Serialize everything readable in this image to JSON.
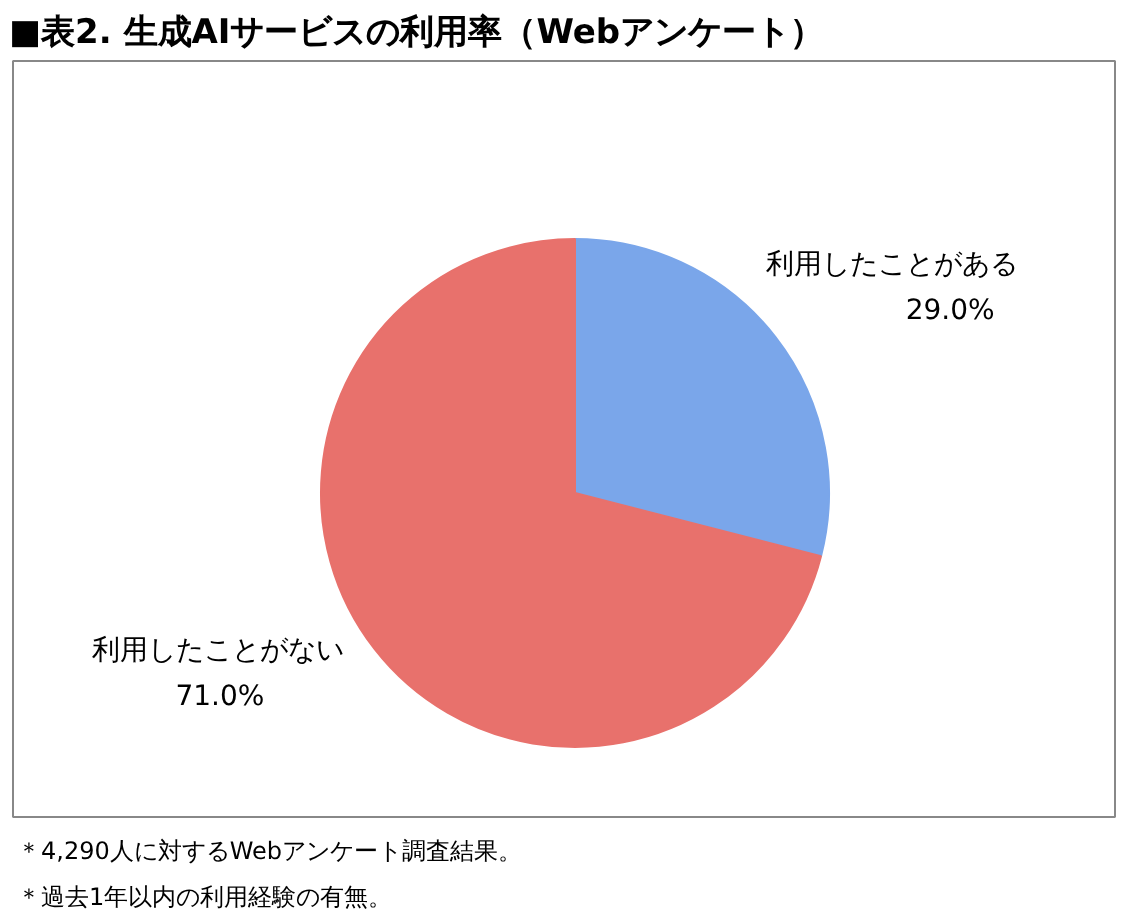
{
  "chart_data": {
    "type": "pie",
    "title": "■表2. 生成AIサービスの利用率（Webアンケート）",
    "categories": [
      "利用したことがある",
      "利用したことがない"
    ],
    "values": [
      29.0,
      71.0
    ],
    "colors": [
      "#7aa6ea",
      "#e8716c"
    ],
    "value_labels": [
      "29.0%",
      "71.0%"
    ],
    "annotations": [
      "＊4,290人に対するWebアンケート調査結果。",
      "＊過去1年以内の利用経験の有無。"
    ]
  }
}
